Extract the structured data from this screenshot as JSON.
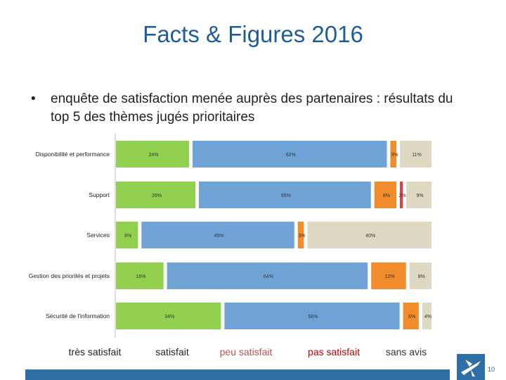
{
  "slide": {
    "title": "Facts & Figures 2016",
    "bullet": "enquête de satisfaction menée auprès des partenaires : résultats du top 5 des thèmes jugés prioritaires",
    "page_number": "10"
  },
  "chart_data": {
    "type": "bar",
    "orientation": "horizontal",
    "stacked": true,
    "categories": [
      "Disponibilité et performance",
      "Support",
      "Services",
      "Gestion des priorités et projets",
      "Sécurité de l'information"
    ],
    "series": [
      {
        "name": "très satisfait",
        "color": "#92d050",
        "values": [
          24,
          26,
          8,
          16,
          34
        ]
      },
      {
        "name": "satisfait",
        "color": "#6fa3d6",
        "values": [
          62,
          55,
          49,
          64,
          56
        ]
      },
      {
        "name": "peu satisfait",
        "color": "#f08c2b",
        "values": [
          3,
          8,
          3,
          12,
          6
        ]
      },
      {
        "name": "pas satisfait",
        "color": "#e23b3b",
        "values": [
          0,
          2,
          0,
          0,
          0
        ]
      },
      {
        "name": "sans avis",
        "color": "#ddd9c3",
        "values": [
          11,
          9,
          40,
          8,
          4
        ]
      }
    ],
    "data_labels": [
      [
        "24%",
        "62%",
        "3%",
        "",
        "11%"
      ],
      [
        "26%",
        "55%",
        "8%",
        "2%",
        "9%"
      ],
      [
        "8%",
        "49%",
        "3%",
        "",
        "40%"
      ],
      [
        "16%",
        "64%",
        "12%",
        "",
        "8%"
      ],
      [
        "34%",
        "56%",
        "6%",
        "",
        "4%"
      ]
    ],
    "xlim": [
      0,
      100
    ],
    "grid": false,
    "legend_position": "bottom"
  }
}
